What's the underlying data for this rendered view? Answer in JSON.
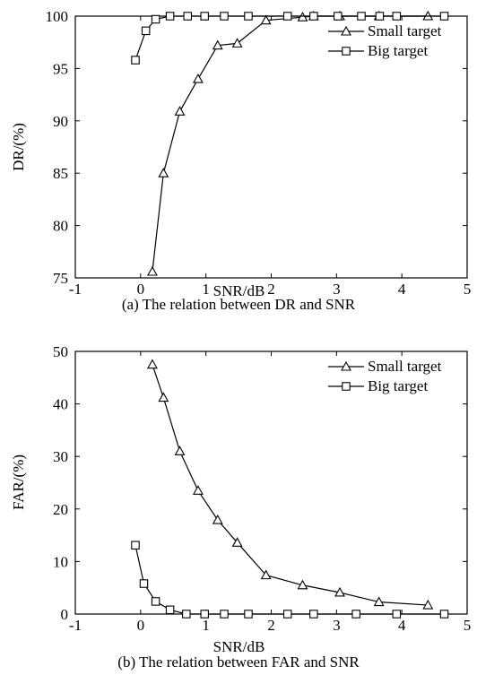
{
  "chart_data": [
    {
      "type": "line",
      "caption": "(a) The relation between DR and SNR",
      "xlabel": "SNR/dB",
      "ylabel": "DR/(%)",
      "xlim": [
        -1,
        5
      ],
      "ylim": [
        75,
        100
      ],
      "xticks": [
        "-1",
        "0",
        "1",
        "2",
        "3",
        "4",
        "5"
      ],
      "yticks": [
        "75",
        "80",
        "85",
        "90",
        "95",
        "100"
      ],
      "legend": "top-right",
      "series": [
        {
          "name": "Small target",
          "marker": "triangle",
          "x": [
            0.18,
            0.35,
            0.6,
            0.88,
            1.18,
            1.48,
            1.92,
            2.48,
            2.65,
            3.05,
            3.65,
            4.4
          ],
          "y": [
            75.6,
            85.0,
            90.9,
            94.0,
            97.2,
            97.4,
            99.6,
            99.9,
            100,
            100,
            100,
            100
          ]
        },
        {
          "name": "Big target",
          "marker": "square",
          "x": [
            -0.08,
            0.08,
            0.23,
            0.45,
            0.72,
            0.98,
            1.28,
            1.65,
            2.25,
            2.65,
            3.02,
            3.38,
            3.66,
            3.92,
            4.65
          ],
          "y": [
            95.8,
            98.6,
            99.7,
            100,
            100,
            100,
            100,
            100,
            100,
            100,
            100,
            100,
            100,
            100,
            100
          ]
        }
      ]
    },
    {
      "type": "line",
      "caption": "(b) The relation between FAR and SNR",
      "xlabel": "SNR/dB",
      "ylabel": "FAR/(%)",
      "xlim": [
        -1,
        5
      ],
      "ylim": [
        0,
        50
      ],
      "xticks": [
        "-1",
        "0",
        "1",
        "2",
        "3",
        "4",
        "5"
      ],
      "yticks": [
        "0",
        "10",
        "20",
        "30",
        "40",
        "50"
      ],
      "legend": "top-right",
      "series": [
        {
          "name": "Small target",
          "marker": "triangle",
          "x": [
            0.18,
            0.35,
            0.6,
            0.88,
            1.18,
            1.48,
            1.92,
            2.48,
            3.05,
            3.65,
            4.4
          ],
          "y": [
            47.5,
            41.2,
            31.0,
            23.5,
            17.9,
            13.6,
            7.4,
            5.5,
            4.1,
            2.3,
            1.7
          ]
        },
        {
          "name": "Big target",
          "marker": "square",
          "x": [
            -0.08,
            0.05,
            0.23,
            0.45,
            0.7,
            0.98,
            1.28,
            1.65,
            2.25,
            2.65,
            3.3,
            3.92,
            4.65
          ],
          "y": [
            13.1,
            5.8,
            2.4,
            0.8,
            0,
            0,
            0,
            0,
            0,
            0,
            0,
            0,
            0
          ]
        }
      ]
    }
  ]
}
